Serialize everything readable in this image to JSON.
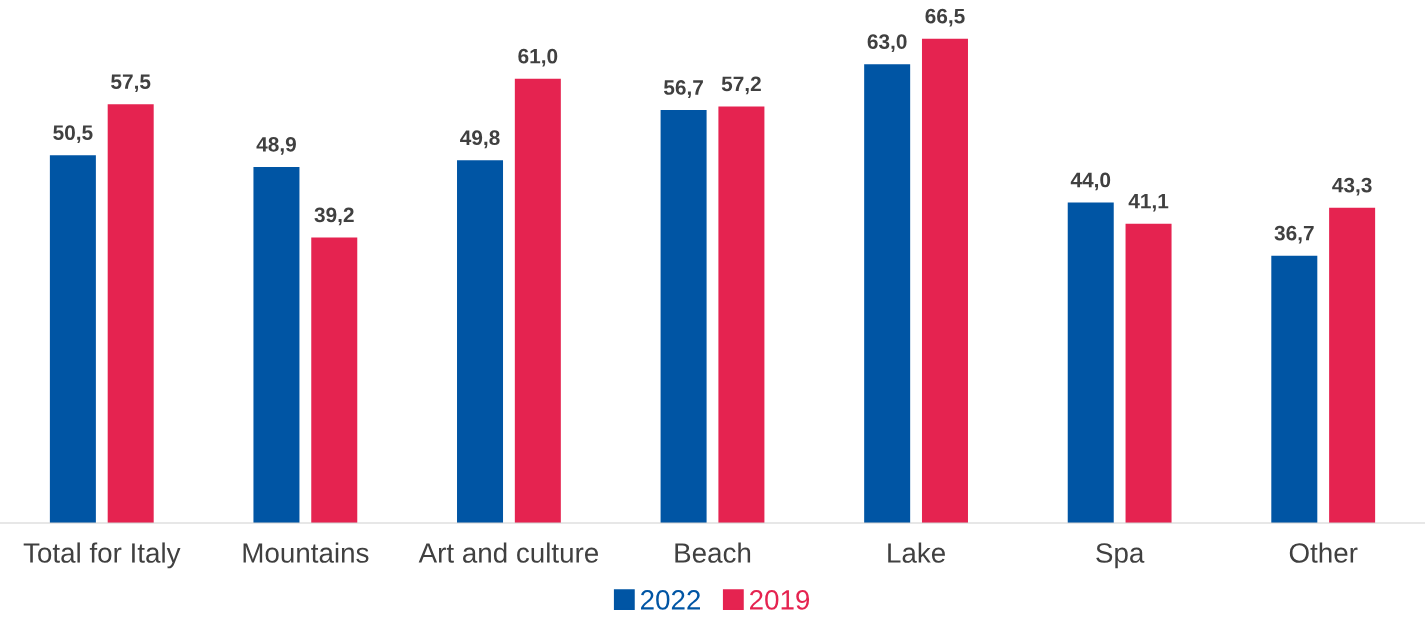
{
  "chart_data": {
    "type": "bar",
    "categories": [
      "Total for Italy",
      "Mountains",
      "Art and culture",
      "Beach",
      "Lake",
      "Spa",
      "Other"
    ],
    "series": [
      {
        "name": "2022",
        "color": "#0055a4",
        "values": [
          50.5,
          48.9,
          49.8,
          56.7,
          63.0,
          44.0,
          36.7
        ],
        "value_labels": [
          "50,5",
          "48,9",
          "49,8",
          "56,7",
          "63,0",
          "44,0",
          "36,7"
        ]
      },
      {
        "name": "2019",
        "color": "#e52350",
        "values": [
          57.5,
          39.2,
          61.0,
          57.2,
          66.5,
          41.1,
          43.3
        ],
        "value_labels": [
          "57,5",
          "39,2",
          "61,0",
          "57,2",
          "66,5",
          "41,1",
          "43,3"
        ]
      }
    ],
    "tick_labels": "x",
    "grid": false,
    "legend": "bottom"
  }
}
